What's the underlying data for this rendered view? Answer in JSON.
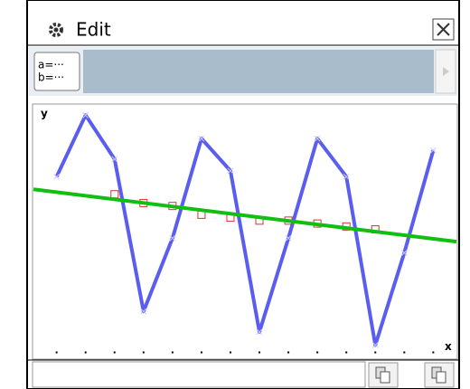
{
  "header": {
    "title": "Edit"
  },
  "toolbar": {
    "icon_lines": [
      "a=···",
      "b=···"
    ]
  },
  "chart_data": {
    "type": "line",
    "x_label": "x",
    "y_label": "y",
    "xlim": [
      0.2,
      14.8
    ],
    "ylim": [
      -0.2,
      8.45
    ],
    "xticks": [
      1,
      2,
      3,
      4,
      5,
      6,
      7,
      8,
      9,
      10,
      11,
      12,
      13,
      14
    ],
    "series": [
      {
        "color": "#5a5ef0",
        "marker": "x",
        "line": true,
        "width": 4,
        "x": [
          1,
          2,
          3,
          4,
          5,
          6,
          7,
          8,
          9,
          10,
          11,
          12,
          13,
          14
        ],
        "values": [
          6.0,
          8.1,
          6.6,
          1.4,
          3.9,
          7.3,
          6.2,
          0.7,
          3.9,
          7.3,
          6.0,
          0.25,
          3.4,
          6.9
        ]
      },
      {
        "color": "#e03030",
        "marker": "square",
        "line": false,
        "width": 1,
        "x": [
          3,
          4,
          5,
          6,
          7,
          8,
          9,
          10,
          11,
          12
        ],
        "values": [
          5.4,
          5.1,
          5.0,
          4.7,
          4.6,
          4.5,
          4.5,
          4.4,
          4.3,
          4.2
        ]
      },
      {
        "color": "#10c010",
        "marker": "none",
        "line": true,
        "width": 4,
        "x": [
          0.2,
          14.8
        ],
        "values": [
          5.57,
          3.78
        ]
      }
    ]
  }
}
